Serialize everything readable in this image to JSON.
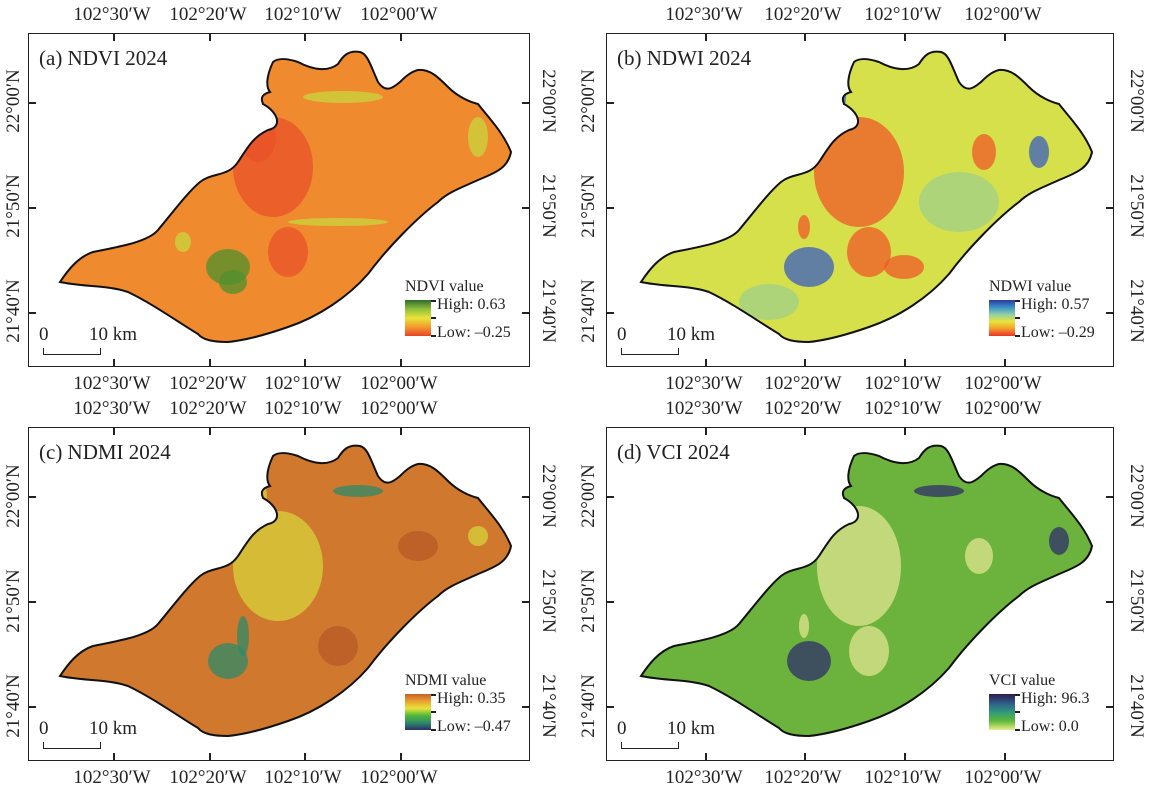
{
  "figure": {
    "lon_labels": [
      "102°30′W",
      "102°20′W",
      "102°10′W",
      "102°00′W"
    ],
    "lat_labels": [
      "22°00′N",
      "21°50′N",
      "21°40′N"
    ],
    "scale_bar": {
      "zero": "0",
      "ten": "10 km"
    }
  },
  "panels": [
    {
      "id": "a",
      "title": "(a) NDVI 2024",
      "legend_title": "NDVI value",
      "high_label": "High: 0.63",
      "low_label": "Low: –0.25",
      "ramp_colors": [
        "#2f6b2a",
        "#8fbf3a",
        "#e8e43a",
        "#f39a2b",
        "#e8432a"
      ],
      "base_color": "#f08a2e",
      "patch_colors": [
        "#e8502a",
        "#4f8f2e",
        "#c9d63c"
      ]
    },
    {
      "id": "b",
      "title": "(b) NDWI 2024",
      "legend_title": "NDWI value",
      "high_label": "High: 0.57",
      "low_label": "Low: –0.29",
      "ramp_colors": [
        "#2b3a9a",
        "#3a8fc8",
        "#8fd0a8",
        "#e8e43a",
        "#f39a2b",
        "#e8322a"
      ],
      "base_color": "#d6e04a",
      "patch_colors": [
        "#ef5a28",
        "#3a5fc0",
        "#9fd08a"
      ]
    },
    {
      "id": "c",
      "title": "(c) NDMI 2024",
      "legend_title": "NDMI value",
      "high_label": "High: 0.35",
      "low_label": "Low: –0.47",
      "ramp_colors": [
        "#c8602a",
        "#e8a030",
        "#e8e43a",
        "#4fb83a",
        "#2f8a6a",
        "#2b2f6a"
      ],
      "base_color": "#d0782e",
      "patch_colors": [
        "#d8d23a",
        "#2f8a6a",
        "#b85a28"
      ]
    },
    {
      "id": "d",
      "title": "(d) VCI 2024",
      "legend_title": "VCI value",
      "high_label": "High: 96.3",
      "low_label": "Low: 0.0",
      "ramp_colors": [
        "#2b1f4a",
        "#2f5a8a",
        "#2f9a7a",
        "#5fb83a",
        "#eaec8a"
      ],
      "base_color": "#6cb33e",
      "patch_colors": [
        "#e0e490",
        "#2f2f6a",
        "#8cc85a"
      ]
    }
  ]
}
